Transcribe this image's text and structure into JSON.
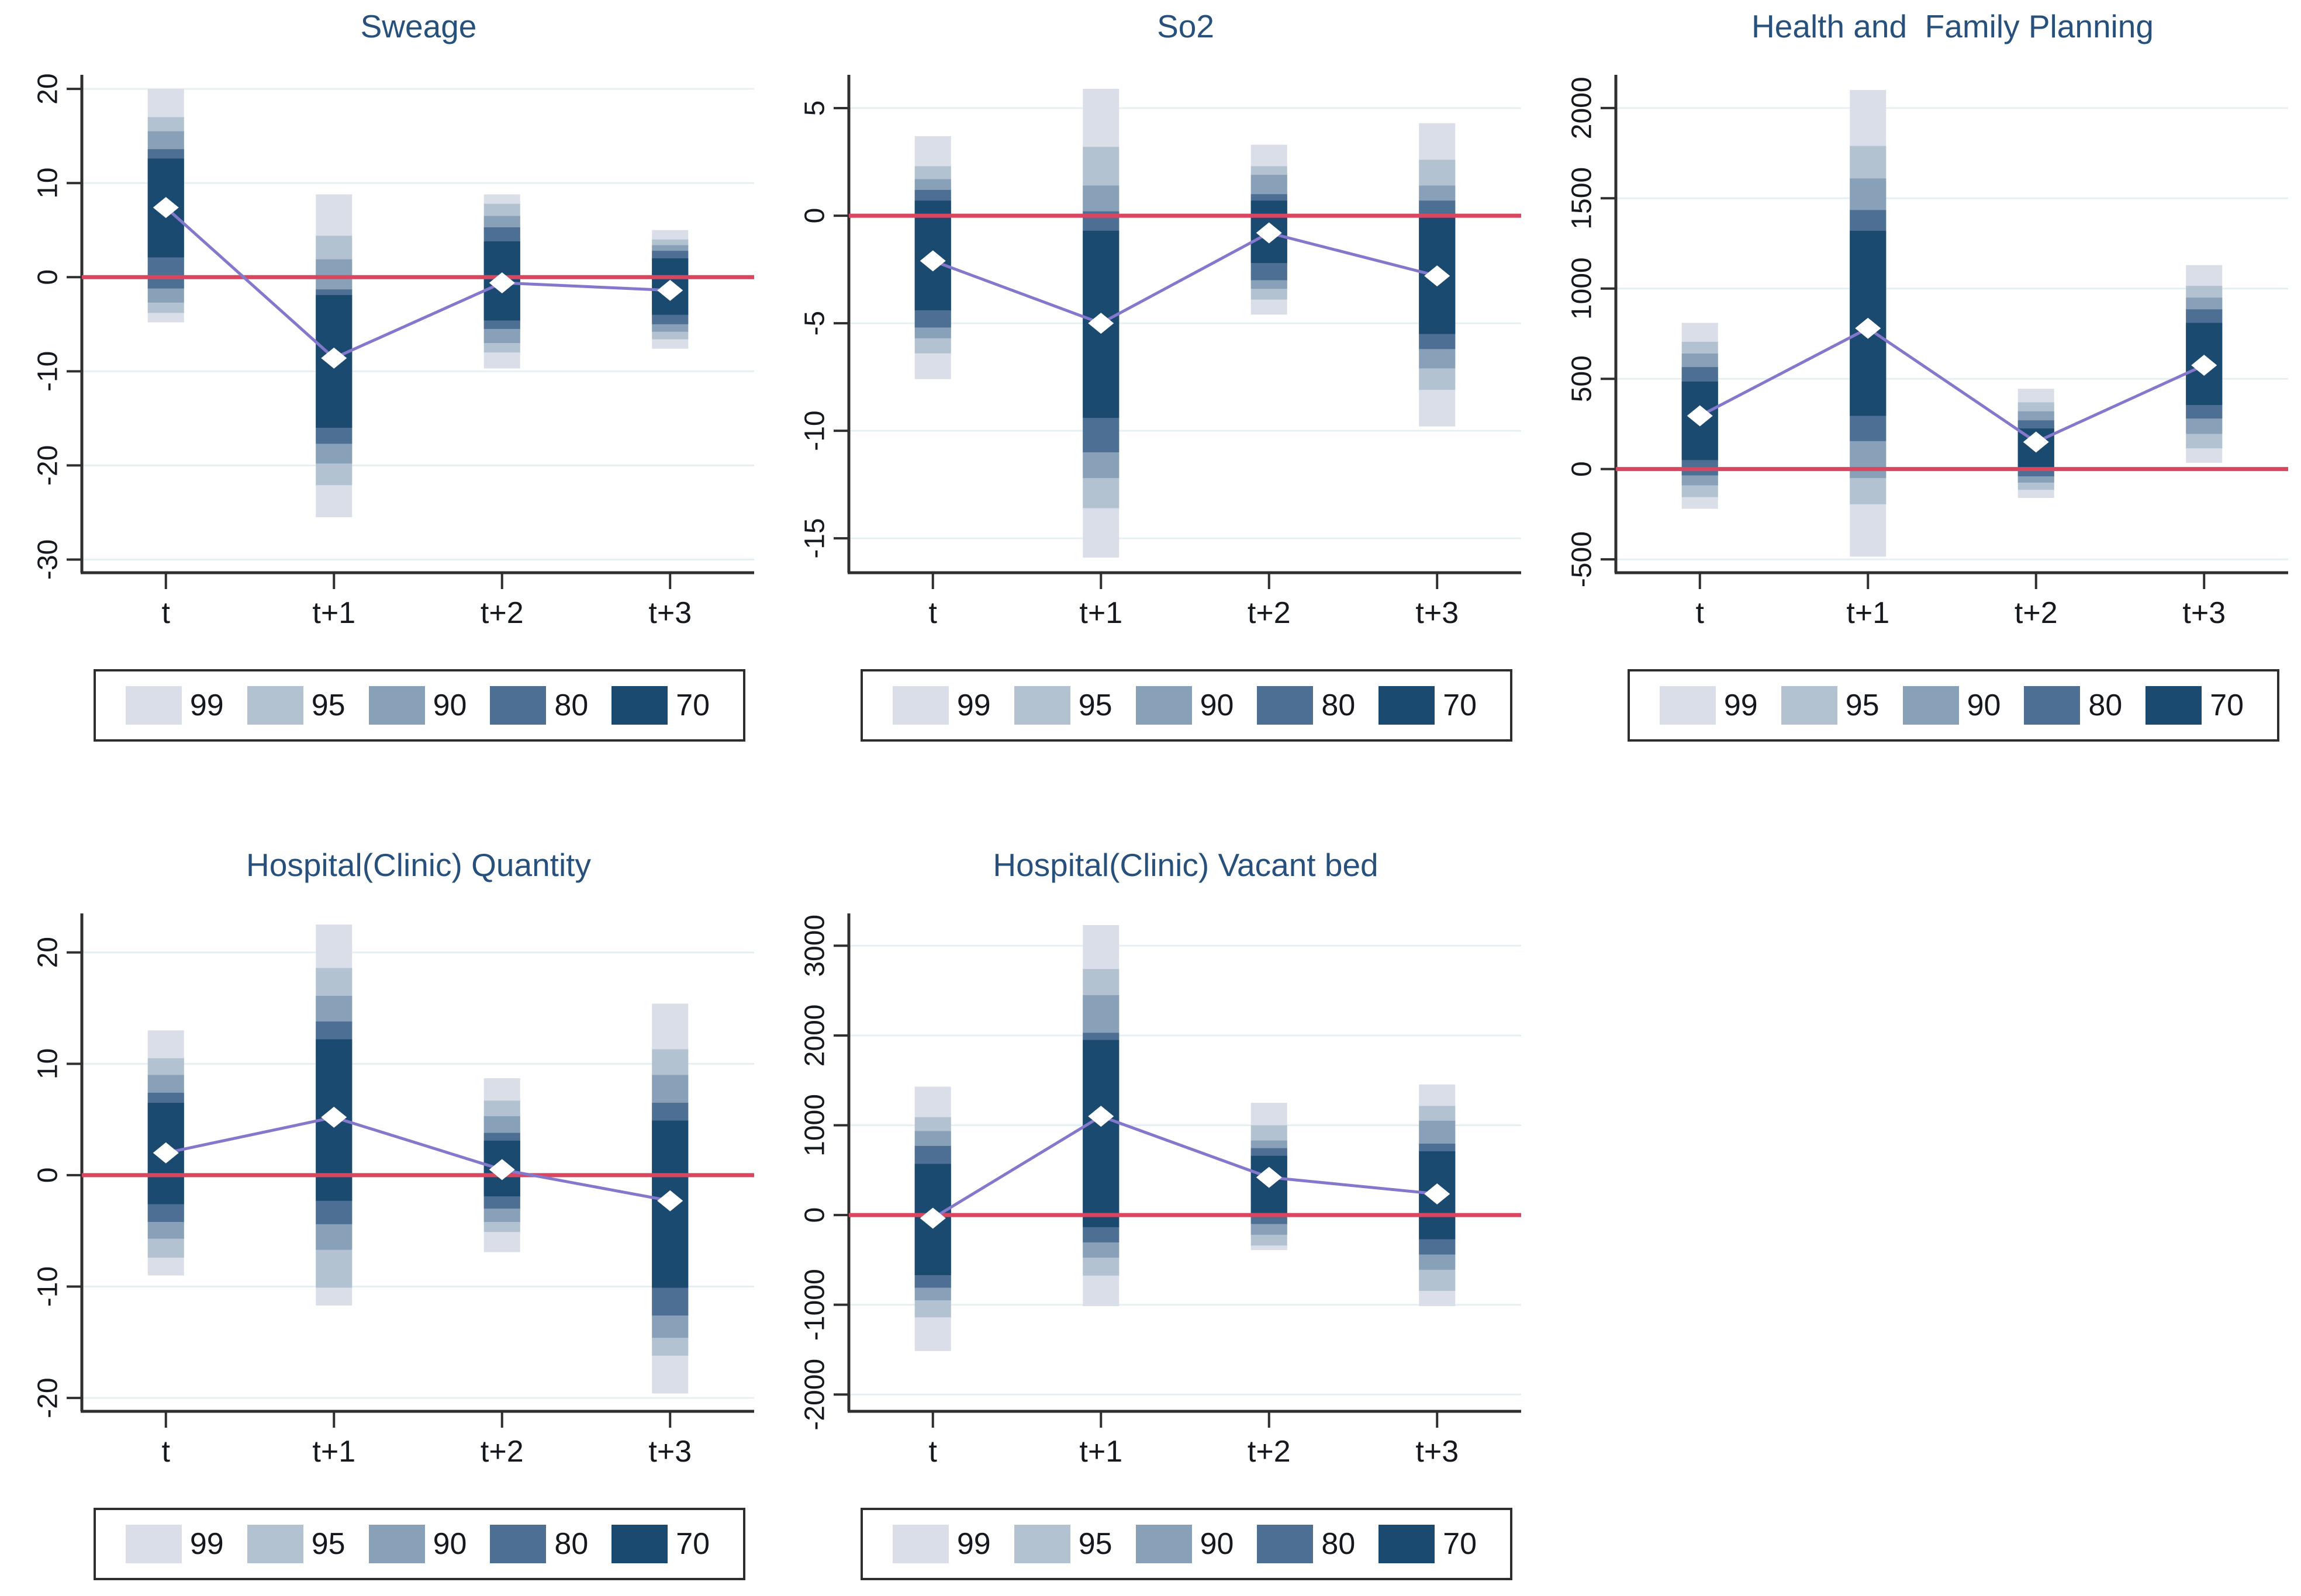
{
  "figure": {
    "categories": [
      "t",
      "t+1",
      "t+2",
      "t+3"
    ],
    "legend": [
      {
        "level": "99",
        "color": "#d9dee8"
      },
      {
        "level": "95",
        "color": "#b3c2d1"
      },
      {
        "level": "90",
        "color": "#89a1b8"
      },
      {
        "level": "80",
        "color": "#4d6f94"
      },
      {
        "level": "70",
        "color": "#1b4a71"
      }
    ],
    "colors": {
      "zero_line": "#d8475f",
      "estimate_line": "#8478cd",
      "marker_fill": "#ffffff",
      "axis": "#2f2f2f",
      "grid": "#e6f0f2",
      "title_text": "#27517c",
      "tick_text": "#15191f",
      "legend_border": "#2e2e2e"
    }
  },
  "chart_data": [
    {
      "type": "ci-range-plot",
      "title": "Sweage",
      "categories": [
        "t",
        "t+1",
        "t+2",
        "t+3"
      ],
      "ylim": [
        -31.4,
        21.5
      ],
      "yticks": [
        20,
        10,
        0,
        -10,
        -20,
        -30
      ],
      "ytick_labels": [
        "20",
        "10",
        "0",
        "-10",
        "-20",
        "-30"
      ],
      "zero_line_value": 0,
      "points": [
        7.4,
        -8.6,
        -0.6,
        -1.4
      ],
      "ci": {
        "99": [
          [
            -4.8,
            20.0
          ],
          [
            -25.5,
            8.8
          ],
          [
            -9.7,
            8.8
          ],
          [
            -7.6,
            5.0
          ]
        ],
        "95": [
          [
            -3.8,
            17.0
          ],
          [
            -22.1,
            4.4
          ],
          [
            -8.0,
            7.8
          ],
          [
            -6.6,
            4.0
          ]
        ],
        "90": [
          [
            -2.7,
            15.5
          ],
          [
            -19.8,
            1.9
          ],
          [
            -7.0,
            6.5
          ],
          [
            -5.8,
            3.4
          ]
        ],
        "80": [
          [
            -1.2,
            13.6
          ],
          [
            -17.7,
            -1.3
          ],
          [
            -5.5,
            5.3
          ],
          [
            -5.0,
            2.8
          ]
        ],
        "70": [
          [
            2.1,
            12.6
          ],
          [
            -16.0,
            -1.9
          ],
          [
            -4.6,
            3.8
          ],
          [
            -4.0,
            2.0
          ]
        ]
      }
    },
    {
      "type": "ci-range-plot",
      "title": "So2",
      "categories": [
        "t",
        "t+1",
        "t+2",
        "t+3"
      ],
      "ylim": [
        -16.6,
        6.55
      ],
      "yticks": [
        5,
        0,
        -5,
        -10,
        -15
      ],
      "ytick_labels": [
        "5",
        "0",
        "-5",
        "-10",
        "-15"
      ],
      "zero_line_value": 0,
      "points": [
        -2.1,
        -5.0,
        -0.8,
        -2.8
      ],
      "ci": {
        "99": [
          [
            -7.6,
            3.7
          ],
          [
            -15.9,
            5.9
          ],
          [
            -4.6,
            3.3
          ],
          [
            -9.8,
            4.3
          ]
        ],
        "95": [
          [
            -6.4,
            2.3
          ],
          [
            -13.6,
            3.2
          ],
          [
            -3.9,
            2.3
          ],
          [
            -8.1,
            2.6
          ]
        ],
        "90": [
          [
            -5.7,
            1.7
          ],
          [
            -12.2,
            1.4
          ],
          [
            -3.4,
            1.9
          ],
          [
            -7.1,
            1.4
          ]
        ],
        "80": [
          [
            -5.2,
            1.2
          ],
          [
            -11.0,
            0.2
          ],
          [
            -3.0,
            1.0
          ],
          [
            -6.2,
            0.7
          ]
        ],
        "70": [
          [
            -4.4,
            0.7
          ],
          [
            -9.4,
            -0.7
          ],
          [
            -2.2,
            0.7
          ],
          [
            -5.5,
            0.0
          ]
        ]
      }
    },
    {
      "type": "ci-range-plot",
      "title": "Health and  Family Planning",
      "categories": [
        "t",
        "t+1",
        "t+2",
        "t+3"
      ],
      "ylim": [
        -574,
        2184
      ],
      "yticks": [
        2000,
        1500,
        1000,
        500,
        0,
        -500
      ],
      "ytick_labels": [
        "2000",
        "1500",
        "1000",
        "500",
        "0",
        "-500"
      ],
      "zero_line_value": 0,
      "points": [
        295,
        780,
        150,
        575
      ],
      "ci": {
        "99": [
          [
            -220,
            810
          ],
          [
            -485,
            2100
          ],
          [
            -160,
            445
          ],
          [
            35,
            1130
          ]
        ],
        "95": [
          [
            -155,
            705
          ],
          [
            -195,
            1790
          ],
          [
            -115,
            370
          ],
          [
            115,
            1015
          ]
        ],
        "90": [
          [
            -90,
            640
          ],
          [
            -50,
            1610
          ],
          [
            -75,
            320
          ],
          [
            195,
            950
          ]
        ],
        "80": [
          [
            -35,
            565
          ],
          [
            155,
            1435
          ],
          [
            -40,
            270
          ],
          [
            280,
            885
          ]
        ],
        "70": [
          [
            50,
            485
          ],
          [
            295,
            1320
          ],
          [
            5,
            225
          ],
          [
            355,
            810
          ]
        ]
      }
    },
    {
      "type": "ci-range-plot",
      "title": "Hospital(Clinic) Quantity",
      "categories": [
        "t",
        "t+1",
        "t+2",
        "t+3"
      ],
      "ylim": [
        -21.2,
        23.5
      ],
      "yticks": [
        20,
        10,
        0,
        -10,
        -20
      ],
      "ytick_labels": [
        "20",
        "10",
        "0",
        "-10",
        "-20"
      ],
      "zero_line_value": 0,
      "points": [
        2.0,
        5.2,
        0.5,
        -2.3
      ],
      "ci": {
        "99": [
          [
            -9.0,
            13.0
          ],
          [
            -11.7,
            22.5
          ],
          [
            -6.9,
            8.7
          ],
          [
            -19.6,
            15.4
          ]
        ],
        "95": [
          [
            -7.4,
            10.5
          ],
          [
            -10.1,
            18.6
          ],
          [
            -5.1,
            6.7
          ],
          [
            -16.2,
            11.3
          ]
        ],
        "90": [
          [
            -5.7,
            9.0
          ],
          [
            -6.7,
            16.1
          ],
          [
            -4.2,
            5.3
          ],
          [
            -14.6,
            9.0
          ]
        ],
        "80": [
          [
            -4.2,
            7.4
          ],
          [
            -4.4,
            13.8
          ],
          [
            -3.0,
            3.8
          ],
          [
            -12.6,
            6.5
          ]
        ],
        "70": [
          [
            -2.6,
            6.5
          ],
          [
            -2.3,
            12.2
          ],
          [
            -1.9,
            3.1
          ],
          [
            -10.1,
            4.9
          ]
        ]
      }
    },
    {
      "type": "ci-range-plot",
      "title": "Hospital(Clinic) Vacant bed",
      "categories": [
        "t",
        "t+1",
        "t+2",
        "t+3"
      ],
      "ylim": [
        -2187,
        3360
      ],
      "yticks": [
        3000,
        2000,
        1000,
        0,
        -1000,
        -2000
      ],
      "ytick_labels": [
        "3000",
        "2000",
        "1000",
        "0",
        "-1000",
        "-2000"
      ],
      "zero_line_value": 0,
      "points": [
        -35,
        1100,
        420,
        235
      ],
      "ci": {
        "99": [
          [
            -1515,
            1430
          ],
          [
            -1015,
            3230
          ],
          [
            -390,
            1250
          ],
          [
            -1015,
            1455
          ]
        ],
        "95": [
          [
            -1140,
            1090
          ],
          [
            -675,
            2740
          ],
          [
            -340,
            1000
          ],
          [
            -845,
            1215
          ]
        ],
        "90": [
          [
            -950,
            935
          ],
          [
            -475,
            2450
          ],
          [
            -220,
            830
          ],
          [
            -610,
            1050
          ]
        ],
        "80": [
          [
            -810,
            770
          ],
          [
            -305,
            2030
          ],
          [
            -100,
            745
          ],
          [
            -440,
            795
          ]
        ],
        "70": [
          [
            -670,
            570
          ],
          [
            -135,
            1950
          ],
          [
            -20,
            660
          ],
          [
            -270,
            710
          ]
        ]
      }
    }
  ]
}
